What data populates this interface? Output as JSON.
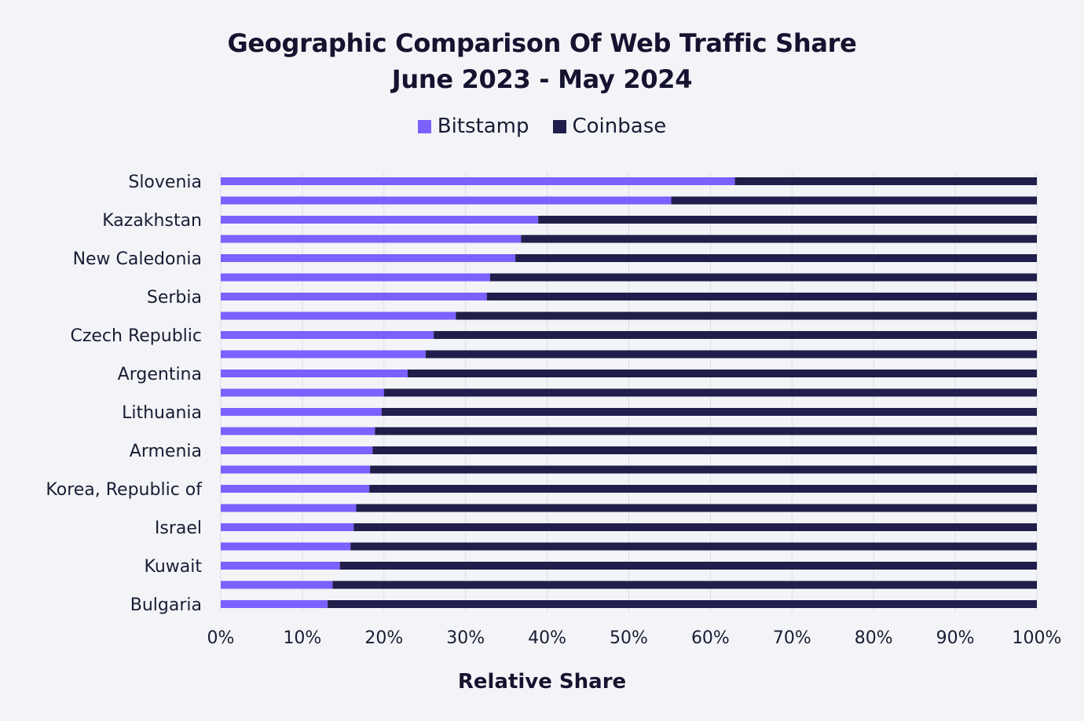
{
  "chart_data": {
    "type": "bar",
    "orientation": "horizontal",
    "stacked": true,
    "title": "Geographic Comparison Of Web Traffic Share",
    "subtitle": "June 2023 - May 2024",
    "xlabel": "Relative Share",
    "ylabel": "",
    "xlim": [
      0,
      100
    ],
    "x_ticks": [
      "0%",
      "10%",
      "20%",
      "30%",
      "40%",
      "50%",
      "60%",
      "70%",
      "80%",
      "90%",
      "100%"
    ],
    "categories": [
      "Slovenia",
      "",
      "Kazakhstan",
      "",
      "New Caledonia",
      "",
      "Serbia",
      "",
      "Czech Republic",
      "",
      "Argentina",
      "",
      "Lithuania",
      "",
      "Armenia",
      "",
      "Korea, Republic of",
      "",
      "Israel",
      "",
      "Kuwait",
      "",
      "Bulgaria"
    ],
    "series": [
      {
        "name": "Bitstamp",
        "color": "#7b61ff",
        "values": [
          63,
          55.2,
          38.9,
          36.8,
          36.1,
          33,
          32.6,
          28.8,
          26.1,
          25.1,
          22.9,
          20,
          19.7,
          18.9,
          18.6,
          18.3,
          18.2,
          16.6,
          16.3,
          15.9,
          14.6,
          13.7,
          13.1
        ]
      },
      {
        "name": "Coinbase",
        "color": "#201e4a",
        "values": [
          37,
          44.8,
          61.1,
          63.2,
          63.9,
          67,
          67.4,
          71.2,
          73.9,
          74.9,
          77.1,
          80,
          80.3,
          81.1,
          81.4,
          81.7,
          81.8,
          83.4,
          83.7,
          84.1,
          85.4,
          86.3,
          86.9
        ]
      }
    ],
    "grid": true,
    "legend_position": "top-center"
  }
}
